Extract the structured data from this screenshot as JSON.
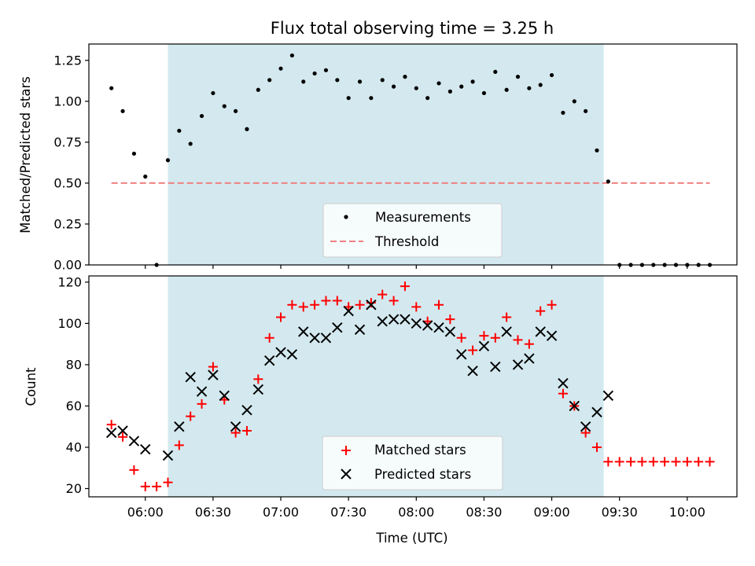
{
  "chart_data": [
    {
      "type": "scatter",
      "title": "Flux total observing time = 3.25 h",
      "xlabel": "",
      "ylabel": "Matched/Predicted stars",
      "ylim": [
        0,
        1.35
      ],
      "yticks": [
        "0.00",
        "0.25",
        "0.50",
        "0.75",
        "1.00",
        "1.25"
      ],
      "xlim": [
        "05:35",
        "10:22"
      ],
      "shaded_interval": [
        "06:10",
        "09:23"
      ],
      "shade_color": "#d3e9ef",
      "legend": {
        "placement": "bottom-center",
        "entries": [
          "Measurements",
          "Threshold"
        ]
      },
      "threshold": {
        "name": "Threshold",
        "value": 0.5,
        "x": [
          "05:45",
          "10:10"
        ],
        "color": "#f08080",
        "style": "dashed"
      },
      "series": [
        {
          "name": "Measurements",
          "marker": "dot",
          "color": "#000000",
          "x": [
            "05:45",
            "05:50",
            "05:55",
            "06:00",
            "06:05",
            "06:10",
            "06:15",
            "06:20",
            "06:25",
            "06:30",
            "06:35",
            "06:40",
            "06:45",
            "06:50",
            "06:55",
            "07:00",
            "07:05",
            "07:10",
            "07:15",
            "07:20",
            "07:25",
            "07:30",
            "07:35",
            "07:40",
            "07:45",
            "07:50",
            "07:55",
            "08:00",
            "08:05",
            "08:10",
            "08:15",
            "08:20",
            "08:25",
            "08:30",
            "08:35",
            "08:40",
            "08:45",
            "08:50",
            "08:55",
            "09:00",
            "09:05",
            "09:10",
            "09:15",
            "09:20",
            "09:25",
            "09:30",
            "09:35",
            "09:40",
            "09:45",
            "09:50",
            "09:55",
            "10:00",
            "10:05",
            "10:10"
          ],
          "y": [
            1.08,
            0.94,
            0.68,
            0.54,
            0.0,
            0.64,
            0.82,
            0.74,
            0.91,
            1.05,
            0.97,
            0.94,
            0.83,
            1.07,
            1.13,
            1.2,
            1.28,
            1.12,
            1.17,
            1.19,
            1.13,
            1.02,
            1.12,
            1.02,
            1.13,
            1.09,
            1.15,
            1.08,
            1.02,
            1.11,
            1.06,
            1.09,
            1.12,
            1.05,
            1.18,
            1.07,
            1.15,
            1.08,
            1.1,
            1.16,
            0.93,
            1.0,
            0.94,
            0.7,
            0.51,
            0.0,
            0.0,
            0.0,
            0.0,
            0.0,
            0.0,
            0.0,
            0.0,
            0.0
          ]
        }
      ]
    },
    {
      "type": "scatter",
      "title": "",
      "xlabel": "Time (UTC)",
      "ylabel": "Count",
      "ylim": [
        16,
        123
      ],
      "yticks": [
        "20",
        "40",
        "60",
        "80",
        "100",
        "120"
      ],
      "xlim": [
        "05:35",
        "10:22"
      ],
      "xticks": [
        "06:00",
        "06:30",
        "07:00",
        "07:30",
        "08:00",
        "08:30",
        "09:00",
        "09:30",
        "10:00"
      ],
      "shaded_interval": [
        "06:10",
        "09:23"
      ],
      "shade_color": "#d3e9ef",
      "legend": {
        "placement": "bottom-center",
        "entries": [
          "Matched stars",
          "Predicted stars"
        ]
      },
      "series": [
        {
          "name": "Matched stars",
          "marker": "plus",
          "color": "#ff0000",
          "x": [
            "05:45",
            "05:50",
            "05:55",
            "06:00",
            "06:05",
            "06:10",
            "06:15",
            "06:20",
            "06:25",
            "06:30",
            "06:35",
            "06:40",
            "06:45",
            "06:50",
            "06:55",
            "07:00",
            "07:05",
            "07:10",
            "07:15",
            "07:20",
            "07:25",
            "07:30",
            "07:35",
            "07:40",
            "07:45",
            "07:50",
            "07:55",
            "08:00",
            "08:05",
            "08:10",
            "08:15",
            "08:20",
            "08:25",
            "08:30",
            "08:35",
            "08:40",
            "08:45",
            "08:50",
            "08:55",
            "09:00",
            "09:05",
            "09:10",
            "09:15",
            "09:20",
            "09:25",
            "09:30",
            "09:35",
            "09:40",
            "09:45",
            "09:50",
            "09:55",
            "10:00",
            "10:05",
            "10:10"
          ],
          "y": [
            51,
            45,
            29,
            21,
            21,
            23,
            41,
            55,
            61,
            79,
            63,
            47,
            48,
            73,
            93,
            103,
            109,
            108,
            109,
            111,
            111,
            108,
            109,
            110,
            114,
            111,
            118,
            108,
            101,
            109,
            102,
            93,
            87,
            94,
            93,
            103,
            92,
            90,
            106,
            109,
            66,
            60,
            47,
            40,
            33,
            33,
            33,
            33,
            33,
            33,
            33,
            33,
            33,
            33
          ]
        },
        {
          "name": "Predicted stars",
          "marker": "x",
          "color": "#000000",
          "x": [
            "05:45",
            "05:50",
            "05:55",
            "06:00",
            "06:10",
            "06:15",
            "06:20",
            "06:25",
            "06:30",
            "06:35",
            "06:40",
            "06:45",
            "06:50",
            "06:55",
            "07:00",
            "07:05",
            "07:10",
            "07:15",
            "07:20",
            "07:25",
            "07:30",
            "07:35",
            "07:40",
            "07:45",
            "07:50",
            "07:55",
            "08:00",
            "08:05",
            "08:10",
            "08:15",
            "08:20",
            "08:25",
            "08:30",
            "08:35",
            "08:40",
            "08:45",
            "08:50",
            "08:55",
            "09:00",
            "09:05",
            "09:10",
            "09:15",
            "09:20",
            "09:25"
          ],
          "y": [
            47,
            48,
            43,
            39,
            36,
            50,
            74,
            67,
            75,
            65,
            50,
            58,
            68,
            82,
            86,
            85,
            96,
            93,
            93,
            98,
            106,
            97,
            109,
            101,
            102,
            102,
            100,
            99,
            98,
            96,
            85,
            77,
            89,
            79,
            96,
            80,
            83,
            96,
            94,
            71,
            60,
            50,
            57,
            65
          ]
        }
      ]
    }
  ]
}
